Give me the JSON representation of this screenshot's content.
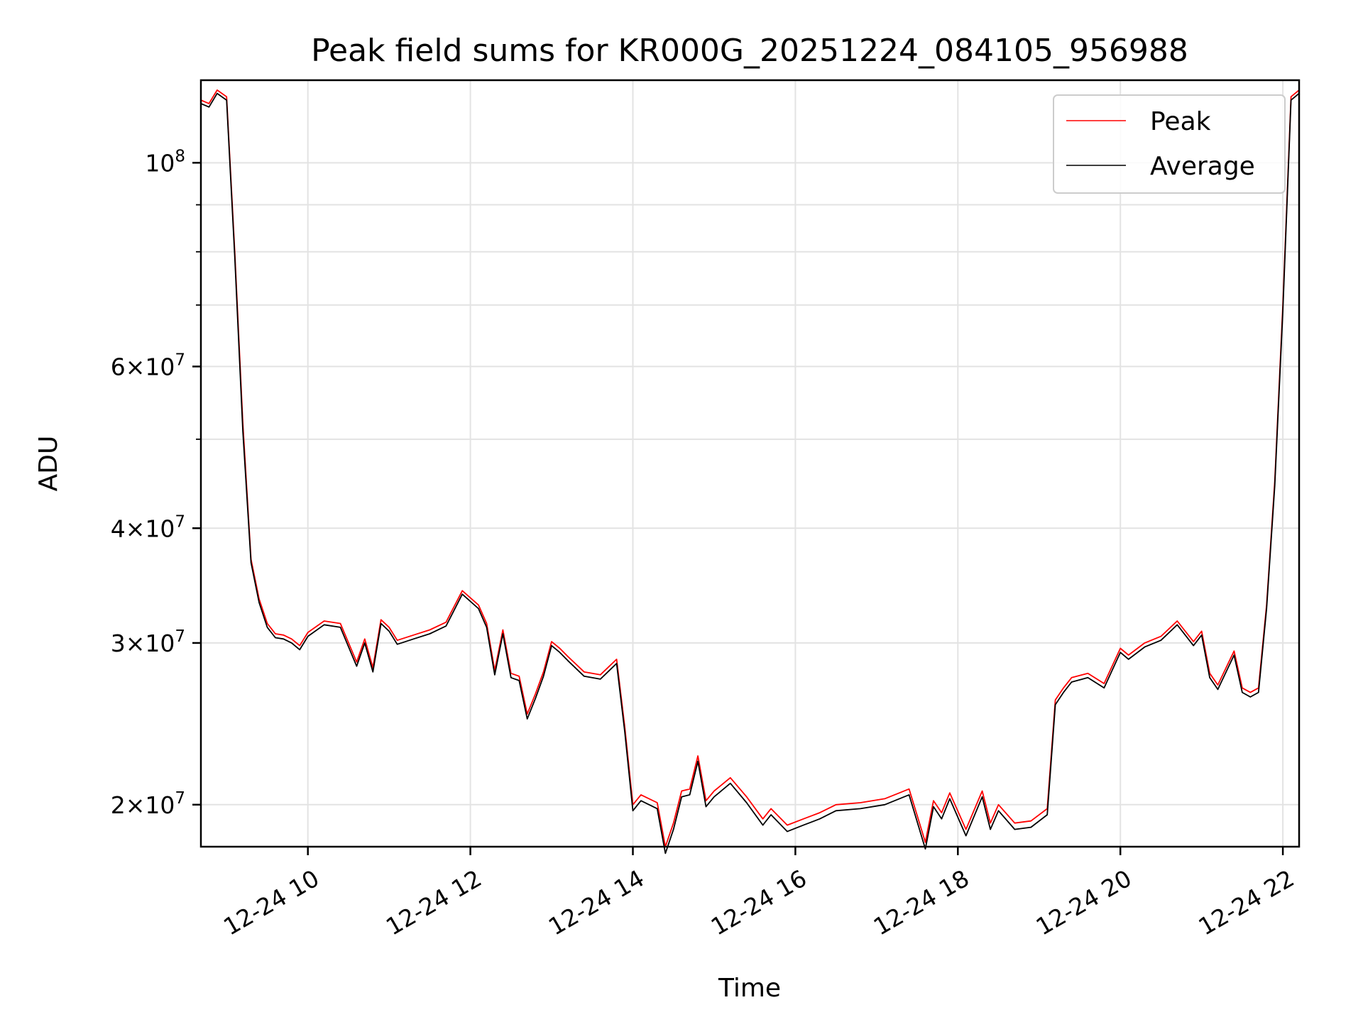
{
  "chart_data": {
    "type": "line",
    "title": "Peak field sums for KR000G_20251224_084105_956988",
    "xlabel": "Time",
    "ylabel": "ADU",
    "yscale": "log",
    "grid": true,
    "legend_position": "top-right",
    "xlim": [
      "2025-12-24 08:41",
      "2025-12-24 22:12"
    ],
    "ylim": [
      18000000,
      123000000
    ],
    "x_ticks": [
      {
        "value": "2025-12-24 10:00",
        "label": "12-24 10"
      },
      {
        "value": "2025-12-24 12:00",
        "label": "12-24 12"
      },
      {
        "value": "2025-12-24 14:00",
        "label": "12-24 14"
      },
      {
        "value": "2025-12-24 16:00",
        "label": "12-24 16"
      },
      {
        "value": "2025-12-24 18:00",
        "label": "12-24 18"
      },
      {
        "value": "2025-12-24 20:00",
        "label": "12-24 20"
      },
      {
        "value": "2025-12-24 22:00",
        "label": "12-24 22"
      }
    ],
    "y_ticks": [
      {
        "value": 20000000,
        "base": "2",
        "times": "×",
        "mant": "10",
        "exp": "7"
      },
      {
        "value": 30000000,
        "base": "3",
        "times": "×",
        "mant": "10",
        "exp": "7"
      },
      {
        "value": 40000000,
        "base": "4",
        "times": "×",
        "mant": "10",
        "exp": "7"
      },
      {
        "value": 60000000,
        "base": "6",
        "times": "×",
        "mant": "10",
        "exp": "7"
      },
      {
        "value": 100000000,
        "base": "",
        "times": "",
        "mant": "10",
        "exp": "8"
      }
    ],
    "y_minor_grid": [
      50000000,
      70000000,
      80000000,
      90000000
    ],
    "series": [
      {
        "name": "Peak",
        "color": "#ff0000",
        "x": [
          "2025-12-24 08:41",
          "2025-12-24 08:47",
          "2025-12-24 08:53",
          "2025-12-24 09:00",
          "2025-12-24 09:06",
          "2025-12-24 09:12",
          "2025-12-24 09:18",
          "2025-12-24 09:24",
          "2025-12-24 09:30",
          "2025-12-24 09:36",
          "2025-12-24 09:42",
          "2025-12-24 09:48",
          "2025-12-24 09:54",
          "2025-12-24 10:00",
          "2025-12-24 10:12",
          "2025-12-24 10:24",
          "2025-12-24 10:36",
          "2025-12-24 10:42",
          "2025-12-24 10:48",
          "2025-12-24 10:54",
          "2025-12-24 11:00",
          "2025-12-24 11:06",
          "2025-12-24 11:18",
          "2025-12-24 11:30",
          "2025-12-24 11:42",
          "2025-12-24 11:54",
          "2025-12-24 12:06",
          "2025-12-24 12:12",
          "2025-12-24 12:18",
          "2025-12-24 12:24",
          "2025-12-24 12:30",
          "2025-12-24 12:36",
          "2025-12-24 12:42",
          "2025-12-24 12:48",
          "2025-12-24 12:54",
          "2025-12-24 13:00",
          "2025-12-24 13:06",
          "2025-12-24 13:12",
          "2025-12-24 13:24",
          "2025-12-24 13:36",
          "2025-12-24 13:48",
          "2025-12-24 13:54",
          "2025-12-24 14:00",
          "2025-12-24 14:06",
          "2025-12-24 14:18",
          "2025-12-24 14:24",
          "2025-12-24 14:30",
          "2025-12-24 14:36",
          "2025-12-24 14:42",
          "2025-12-24 14:48",
          "2025-12-24 14:54",
          "2025-12-24 15:00",
          "2025-12-24 15:12",
          "2025-12-24 15:24",
          "2025-12-24 15:36",
          "2025-12-24 15:42",
          "2025-12-24 15:54",
          "2025-12-24 16:06",
          "2025-12-24 16:18",
          "2025-12-24 16:30",
          "2025-12-24 16:48",
          "2025-12-24 17:06",
          "2025-12-24 17:24",
          "2025-12-24 17:36",
          "2025-12-24 17:42",
          "2025-12-24 17:48",
          "2025-12-24 17:54",
          "2025-12-24 18:06",
          "2025-12-24 18:18",
          "2025-12-24 18:24",
          "2025-12-24 18:30",
          "2025-12-24 18:42",
          "2025-12-24 18:54",
          "2025-12-24 19:06",
          "2025-12-24 19:12",
          "2025-12-24 19:18",
          "2025-12-24 19:24",
          "2025-12-24 19:36",
          "2025-12-24 19:48",
          "2025-12-24 20:00",
          "2025-12-24 20:06",
          "2025-12-24 20:18",
          "2025-12-24 20:30",
          "2025-12-24 20:42",
          "2025-12-24 20:54",
          "2025-12-24 21:00",
          "2025-12-24 21:06",
          "2025-12-24 21:12",
          "2025-12-24 21:24",
          "2025-12-24 21:30",
          "2025-12-24 21:36",
          "2025-12-24 21:42",
          "2025-12-24 21:48",
          "2025-12-24 21:54",
          "2025-12-24 22:00",
          "2025-12-24 22:06",
          "2025-12-24 22:12"
        ],
        "values": [
          117000000,
          116000000,
          120000000,
          118000000,
          80000000,
          52000000,
          37000000,
          33500000,
          31500000,
          30700000,
          30600000,
          30300000,
          29800000,
          30800000,
          31700000,
          31500000,
          28600000,
          30300000,
          28200000,
          31800000,
          31200000,
          30200000,
          30600000,
          31000000,
          31600000,
          34200000,
          33000000,
          31500000,
          28000000,
          31000000,
          27800000,
          27600000,
          25100000,
          26400000,
          27900000,
          30100000,
          29600000,
          29000000,
          27900000,
          27700000,
          28800000,
          24300000,
          20000000,
          20500000,
          20100000,
          18000000,
          19100000,
          20700000,
          20800000,
          22600000,
          20200000,
          20700000,
          21400000,
          20400000,
          19300000,
          19800000,
          19000000,
          19300000,
          19600000,
          20000000,
          20100000,
          20300000,
          20800000,
          18200000,
          20200000,
          19600000,
          20600000,
          18800000,
          20700000,
          19100000,
          20000000,
          19100000,
          19200000,
          19800000,
          26000000,
          26800000,
          27500000,
          27800000,
          27100000,
          29600000,
          29100000,
          30000000,
          30500000,
          31700000,
          30100000,
          30900000,
          27800000,
          27000000,
          29400000,
          26800000,
          26500000,
          26800000,
          33000000,
          45000000,
          70000000,
          118000000,
          120000000
        ]
      },
      {
        "name": "Average",
        "color": "#000000",
        "x": [
          "2025-12-24 08:41",
          "2025-12-24 08:47",
          "2025-12-24 08:53",
          "2025-12-24 09:00",
          "2025-12-24 09:06",
          "2025-12-24 09:12",
          "2025-12-24 09:18",
          "2025-12-24 09:24",
          "2025-12-24 09:30",
          "2025-12-24 09:36",
          "2025-12-24 09:42",
          "2025-12-24 09:48",
          "2025-12-24 09:54",
          "2025-12-24 10:00",
          "2025-12-24 10:12",
          "2025-12-24 10:24",
          "2025-12-24 10:36",
          "2025-12-24 10:42",
          "2025-12-24 10:48",
          "2025-12-24 10:54",
          "2025-12-24 11:00",
          "2025-12-24 11:06",
          "2025-12-24 11:18",
          "2025-12-24 11:30",
          "2025-12-24 11:42",
          "2025-12-24 11:54",
          "2025-12-24 12:06",
          "2025-12-24 12:12",
          "2025-12-24 12:18",
          "2025-12-24 12:24",
          "2025-12-24 12:30",
          "2025-12-24 12:36",
          "2025-12-24 12:42",
          "2025-12-24 12:48",
          "2025-12-24 12:54",
          "2025-12-24 13:00",
          "2025-12-24 13:06",
          "2025-12-24 13:12",
          "2025-12-24 13:24",
          "2025-12-24 13:36",
          "2025-12-24 13:48",
          "2025-12-24 13:54",
          "2025-12-24 14:00",
          "2025-12-24 14:06",
          "2025-12-24 14:18",
          "2025-12-24 14:24",
          "2025-12-24 14:30",
          "2025-12-24 14:36",
          "2025-12-24 14:42",
          "2025-12-24 14:48",
          "2025-12-24 14:54",
          "2025-12-24 15:00",
          "2025-12-24 15:12",
          "2025-12-24 15:24",
          "2025-12-24 15:36",
          "2025-12-24 15:42",
          "2025-12-24 15:54",
          "2025-12-24 16:06",
          "2025-12-24 16:18",
          "2025-12-24 16:30",
          "2025-12-24 16:48",
          "2025-12-24 17:06",
          "2025-12-24 17:24",
          "2025-12-24 17:36",
          "2025-12-24 17:42",
          "2025-12-24 17:48",
          "2025-12-24 17:54",
          "2025-12-24 18:06",
          "2025-12-24 18:18",
          "2025-12-24 18:24",
          "2025-12-24 18:30",
          "2025-12-24 18:42",
          "2025-12-24 18:54",
          "2025-12-24 19:06",
          "2025-12-24 19:12",
          "2025-12-24 19:18",
          "2025-12-24 19:24",
          "2025-12-24 19:36",
          "2025-12-24 19:48",
          "2025-12-24 20:00",
          "2025-12-24 20:06",
          "2025-12-24 20:18",
          "2025-12-24 20:30",
          "2025-12-24 20:42",
          "2025-12-24 20:54",
          "2025-12-24 21:00",
          "2025-12-24 21:06",
          "2025-12-24 21:12",
          "2025-12-24 21:24",
          "2025-12-24 21:30",
          "2025-12-24 21:36",
          "2025-12-24 21:42",
          "2025-12-24 21:48",
          "2025-12-24 21:54",
          "2025-12-24 22:00",
          "2025-12-24 22:06",
          "2025-12-24 22:12"
        ],
        "values": [
          116000000,
          115000000,
          119000000,
          117000000,
          79000000,
          51000000,
          36700000,
          33200000,
          31200000,
          30400000,
          30300000,
          30000000,
          29500000,
          30500000,
          31400000,
          31200000,
          28300000,
          30000000,
          27900000,
          31500000,
          30900000,
          29900000,
          30300000,
          30700000,
          31300000,
          33900000,
          32700000,
          31200000,
          27700000,
          30700000,
          27500000,
          27300000,
          24800000,
          26100000,
          27600000,
          29800000,
          29300000,
          28700000,
          27600000,
          27400000,
          28500000,
          24000000,
          19700000,
          20200000,
          19800000,
          17700000,
          18800000,
          20400000,
          20500000,
          22300000,
          19900000,
          20400000,
          21100000,
          20100000,
          19000000,
          19500000,
          18700000,
          19000000,
          19300000,
          19700000,
          19800000,
          20000000,
          20500000,
          17900000,
          19900000,
          19300000,
          20300000,
          18500000,
          20400000,
          18800000,
          19700000,
          18800000,
          18900000,
          19500000,
          25700000,
          26500000,
          27200000,
          27500000,
          26800000,
          29300000,
          28800000,
          29700000,
          30200000,
          31400000,
          29800000,
          30600000,
          27500000,
          26700000,
          29100000,
          26500000,
          26200000,
          26500000,
          32700000,
          44500000,
          69000000,
          117000000,
          119000000
        ]
      }
    ]
  }
}
